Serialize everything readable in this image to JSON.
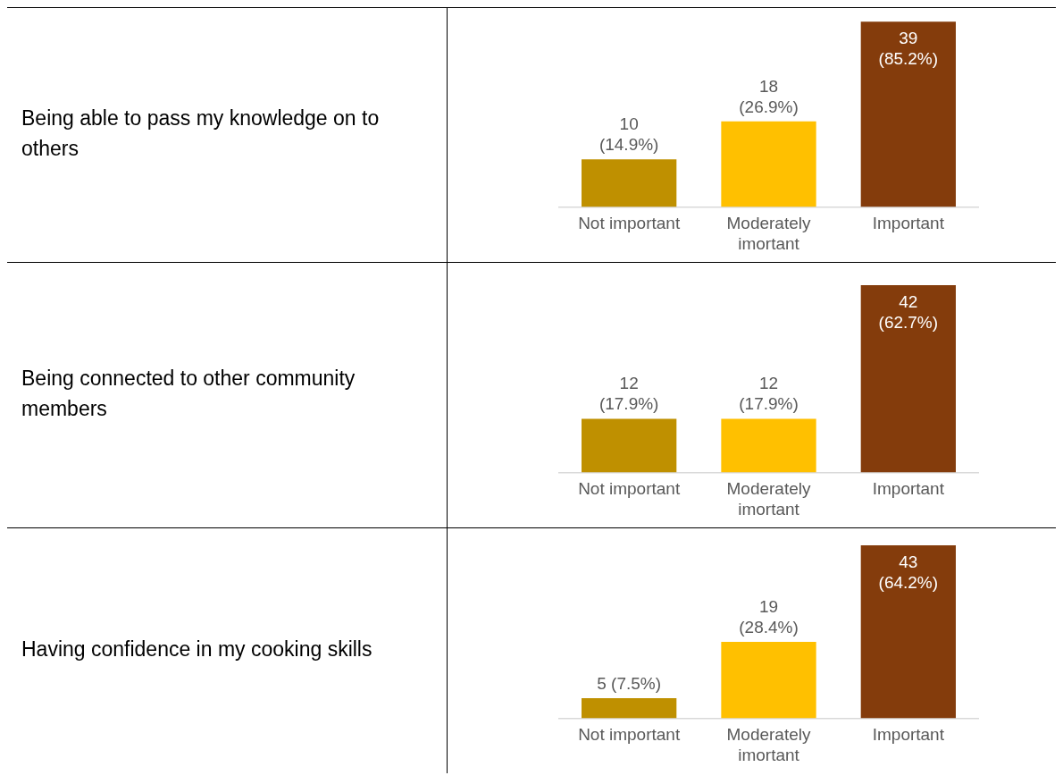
{
  "chart_data": [
    {
      "type": "bar",
      "ylabel": "Being able to pass my knowledge on to others",
      "categories": [
        "Not important",
        "Moderately imortant",
        "Important"
      ],
      "values": [
        10,
        18,
        39
      ],
      "value_labels": [
        "10 (14.9%)",
        "18 (26.9%)",
        "39 (85.2%)"
      ],
      "colors": [
        "#bf9000",
        "#ffc000",
        "#843c0c"
      ]
    },
    {
      "type": "bar",
      "ylabel": "Being connected to other community members",
      "categories": [
        "Not important",
        "Moderately imortant",
        "Important"
      ],
      "values": [
        12,
        12,
        42
      ],
      "value_labels": [
        "12 (17.9%)",
        "12 (17.9%)",
        "42 (62.7%)"
      ],
      "colors": [
        "#bf9000",
        "#ffc000",
        "#843c0c"
      ]
    },
    {
      "type": "bar",
      "ylabel": "Having confidence in my cooking skills",
      "categories": [
        "Not important",
        "Moderately imortant",
        "Important"
      ],
      "values": [
        5,
        19,
        43
      ],
      "value_labels": [
        "5 (7.5%)",
        "19 (28.4%)",
        "43 (64.2%)"
      ],
      "colors": [
        "#bf9000",
        "#ffc000",
        "#843c0c"
      ]
    }
  ]
}
